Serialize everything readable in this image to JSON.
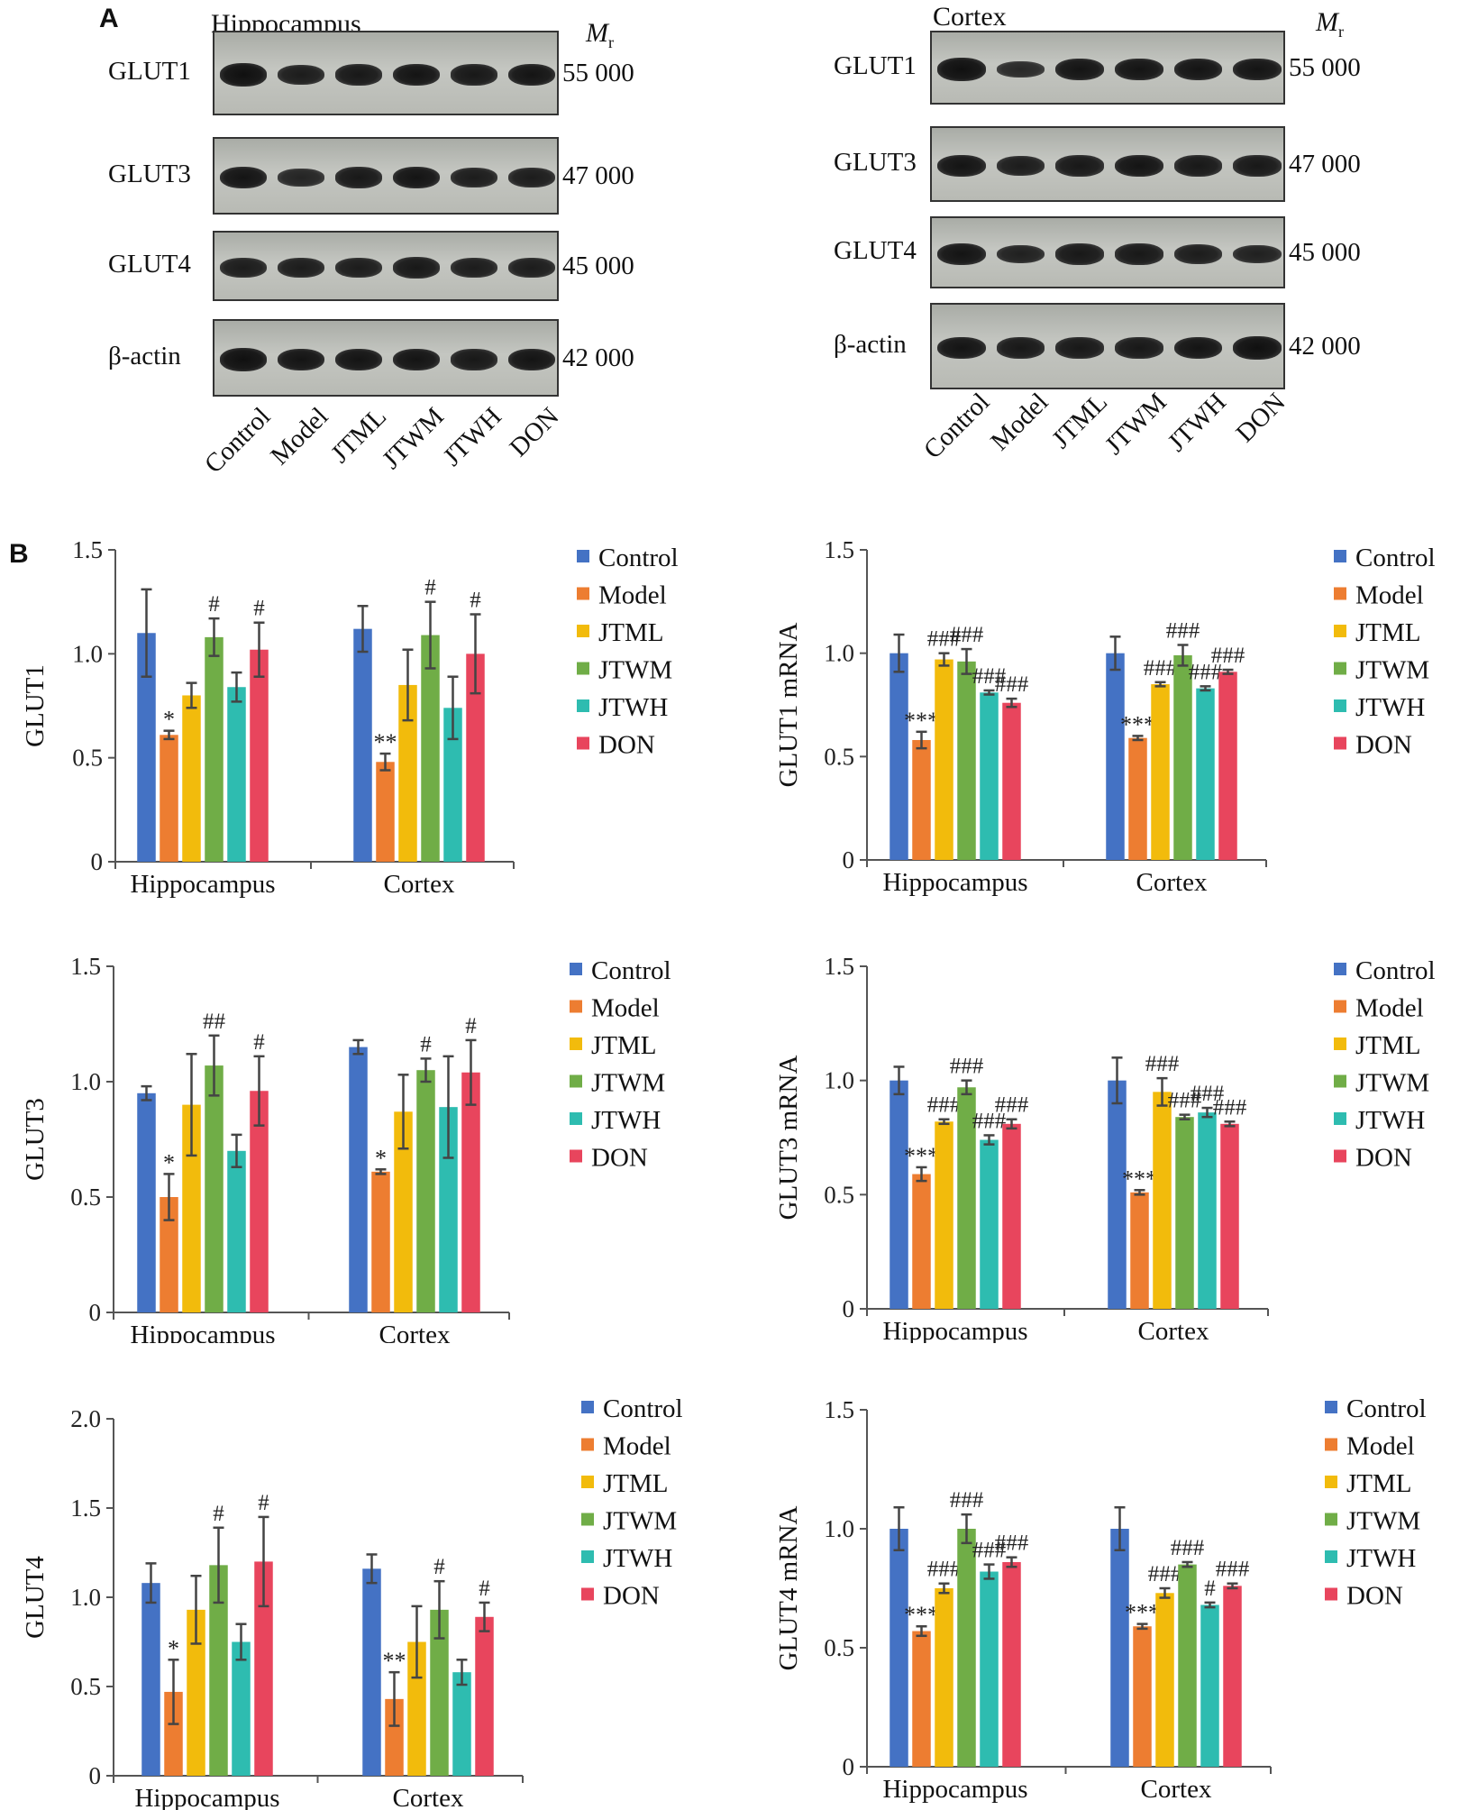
{
  "panelA": {
    "letter": "A",
    "mr_label": "M",
    "mr_sub": "r",
    "lanes": [
      "Control",
      "Model",
      "JTML",
      "JTWM",
      "JTWH",
      "DON"
    ],
    "blots": [
      {
        "title": "Hippocampus",
        "rows": [
          {
            "label": "GLUT1",
            "size": "55 000",
            "bands": [
              1.0,
              0.85,
              0.9,
              0.95,
              0.9,
              0.95
            ]
          },
          {
            "label": "GLUT3",
            "size": "47 000",
            "bands": [
              0.95,
              0.75,
              0.9,
              0.95,
              0.85,
              0.85
            ]
          },
          {
            "label": "GLUT4",
            "size": "45 000",
            "bands": [
              0.85,
              0.85,
              0.85,
              0.9,
              0.85,
              0.85
            ]
          },
          {
            "label": "β-actin",
            "size": "42 000",
            "bands": [
              1.0,
              0.95,
              0.95,
              0.95,
              0.9,
              0.95
            ]
          }
        ]
      },
      {
        "title": "Cortex",
        "rows": [
          {
            "label": "GLUT1",
            "size": "55 000",
            "bands": [
              1.0,
              0.7,
              0.95,
              0.95,
              0.95,
              0.95
            ]
          },
          {
            "label": "GLUT3",
            "size": "47 000",
            "bands": [
              0.95,
              0.85,
              0.9,
              0.95,
              0.9,
              0.9
            ]
          },
          {
            "label": "GLUT4",
            "size": "45 000",
            "bands": [
              0.95,
              0.8,
              0.9,
              0.9,
              0.85,
              0.8
            ]
          },
          {
            "label": "β-actin",
            "size": "42 000",
            "bands": [
              0.95,
              0.9,
              0.9,
              0.9,
              0.95,
              1.0
            ]
          }
        ]
      }
    ]
  },
  "panelB": {
    "letter": "B"
  },
  "colors": {
    "Control": "#4472c4",
    "Model": "#ed7d31",
    "JTML": "#f2bb0c",
    "JTWM": "#70ad47",
    "JTWH": "#2ebcb0",
    "DON": "#e8455d"
  },
  "chart_data": [
    {
      "type": "bar",
      "ylabel": "GLUT1",
      "categories": [
        "Hippocampus",
        "Cortex"
      ],
      "ylim": [
        0,
        1.5
      ],
      "yticks": [
        "0",
        "0.5",
        "1.0",
        "1.5"
      ],
      "legend": "right",
      "series": [
        {
          "name": "Control",
          "values": [
            1.1,
            1.12
          ],
          "errors": [
            0.21,
            0.11
          ],
          "marks": [
            "",
            ""
          ]
        },
        {
          "name": "Model",
          "values": [
            0.61,
            0.48
          ],
          "errors": [
            0.02,
            0.04
          ],
          "marks": [
            "*",
            "**"
          ]
        },
        {
          "name": "JTML",
          "values": [
            0.8,
            0.85
          ],
          "errors": [
            0.06,
            0.17
          ],
          "marks": [
            "",
            ""
          ]
        },
        {
          "name": "JTWM",
          "values": [
            1.08,
            1.09
          ],
          "errors": [
            0.09,
            0.16
          ],
          "marks": [
            "#",
            "#"
          ]
        },
        {
          "name": "JTWH",
          "values": [
            0.84,
            0.74
          ],
          "errors": [
            0.07,
            0.15
          ],
          "marks": [
            "",
            ""
          ]
        },
        {
          "name": "DON",
          "values": [
            1.02,
            1.0
          ],
          "errors": [
            0.13,
            0.19
          ],
          "marks": [
            "#",
            "#"
          ]
        }
      ]
    },
    {
      "type": "bar",
      "ylabel": "GLUT1 mRNA",
      "categories": [
        "Hippocampus",
        "Cortex"
      ],
      "ylim": [
        0,
        1.5
      ],
      "yticks": [
        "0",
        "0.5",
        "1.0",
        "1.5"
      ],
      "legend": "right",
      "series": [
        {
          "name": "Control",
          "values": [
            1.0,
            1.0
          ],
          "errors": [
            0.09,
            0.08
          ],
          "marks": [
            "",
            ""
          ]
        },
        {
          "name": "Model",
          "values": [
            0.58,
            0.59
          ],
          "errors": [
            0.04,
            0.01
          ],
          "marks": [
            "***",
            "***"
          ]
        },
        {
          "name": "JTML",
          "values": [
            0.97,
            0.85
          ],
          "errors": [
            0.03,
            0.01
          ],
          "marks": [
            "###",
            "###"
          ]
        },
        {
          "name": "JTWM",
          "values": [
            0.96,
            0.99
          ],
          "errors": [
            0.06,
            0.05
          ],
          "marks": [
            "###",
            "###"
          ]
        },
        {
          "name": "JTWH",
          "values": [
            0.81,
            0.83
          ],
          "errors": [
            0.01,
            0.01
          ],
          "marks": [
            "###",
            "###"
          ]
        },
        {
          "name": "DON",
          "values": [
            0.76,
            0.91
          ],
          "errors": [
            0.02,
            0.01
          ],
          "marks": [
            "###",
            "###"
          ]
        }
      ]
    },
    {
      "type": "bar",
      "ylabel": "GLUT3",
      "categories": [
        "Hippocampus",
        "Cortex"
      ],
      "ylim": [
        0,
        1.5
      ],
      "yticks": [
        "0",
        "0.5",
        "1.0",
        "1.5"
      ],
      "legend": "right",
      "series": [
        {
          "name": "Control",
          "values": [
            0.95,
            1.15
          ],
          "errors": [
            0.03,
            0.03
          ],
          "marks": [
            "",
            ""
          ]
        },
        {
          "name": "Model",
          "values": [
            0.5,
            0.61
          ],
          "errors": [
            0.1,
            0.01
          ],
          "marks": [
            "*",
            "*"
          ]
        },
        {
          "name": "JTML",
          "values": [
            0.9,
            0.87
          ],
          "errors": [
            0.22,
            0.16
          ],
          "marks": [
            "",
            ""
          ]
        },
        {
          "name": "JTWM",
          "values": [
            1.07,
            1.05
          ],
          "errors": [
            0.13,
            0.05
          ],
          "marks": [
            "##",
            "#"
          ]
        },
        {
          "name": "JTWH",
          "values": [
            0.7,
            0.89
          ],
          "errors": [
            0.07,
            0.22
          ],
          "marks": [
            "",
            ""
          ]
        },
        {
          "name": "DON",
          "values": [
            0.96,
            1.04
          ],
          "errors": [
            0.15,
            0.14
          ],
          "marks": [
            "#",
            "#"
          ]
        }
      ]
    },
    {
      "type": "bar",
      "ylabel": "GLUT3 mRNA",
      "categories": [
        "Hippocampus",
        "Cortex"
      ],
      "ylim": [
        0,
        1.5
      ],
      "yticks": [
        "0",
        "0.5",
        "1.0",
        "1.5"
      ],
      "legend": "right",
      "series": [
        {
          "name": "Control",
          "values": [
            1.0,
            1.0
          ],
          "errors": [
            0.06,
            0.1
          ],
          "marks": [
            "",
            ""
          ]
        },
        {
          "name": "Model",
          "values": [
            0.59,
            0.51
          ],
          "errors": [
            0.03,
            0.01
          ],
          "marks": [
            "***",
            "***"
          ]
        },
        {
          "name": "JTML",
          "values": [
            0.82,
            0.95
          ],
          "errors": [
            0.01,
            0.06
          ],
          "marks": [
            "###",
            "###"
          ]
        },
        {
          "name": "JTWM",
          "values": [
            0.97,
            0.84
          ],
          "errors": [
            0.03,
            0.01
          ],
          "marks": [
            "###",
            "###"
          ]
        },
        {
          "name": "JTWH",
          "values": [
            0.74,
            0.86
          ],
          "errors": [
            0.02,
            0.02
          ],
          "marks": [
            "###",
            "###"
          ]
        },
        {
          "name": "DON",
          "values": [
            0.81,
            0.81
          ],
          "errors": [
            0.02,
            0.01
          ],
          "marks": [
            "###",
            "###"
          ]
        }
      ]
    },
    {
      "type": "bar",
      "ylabel": "GLUT4",
      "categories": [
        "Hippocampus",
        "Cortex"
      ],
      "ylim": [
        0,
        2.0
      ],
      "yticks": [
        "0",
        "0.5",
        "1.0",
        "1.5",
        "2.0"
      ],
      "legend": "right",
      "series": [
        {
          "name": "Control",
          "values": [
            1.08,
            1.16
          ],
          "errors": [
            0.11,
            0.08
          ],
          "marks": [
            "",
            ""
          ]
        },
        {
          "name": "Model",
          "values": [
            0.47,
            0.43
          ],
          "errors": [
            0.18,
            0.15
          ],
          "marks": [
            "*",
            "**"
          ]
        },
        {
          "name": "JTML",
          "values": [
            0.93,
            0.75
          ],
          "errors": [
            0.19,
            0.2
          ],
          "marks": [
            "",
            ""
          ]
        },
        {
          "name": "JTWM",
          "values": [
            1.18,
            0.93
          ],
          "errors": [
            0.21,
            0.16
          ],
          "marks": [
            "#",
            "#"
          ]
        },
        {
          "name": "JTWH",
          "values": [
            0.75,
            0.58
          ],
          "errors": [
            0.1,
            0.07
          ],
          "marks": [
            "",
            ""
          ]
        },
        {
          "name": "DON",
          "values": [
            1.2,
            0.89
          ],
          "errors": [
            0.25,
            0.08
          ],
          "marks": [
            "#",
            "#"
          ]
        }
      ]
    },
    {
      "type": "bar",
      "ylabel": "GLUT4 mRNA",
      "categories": [
        "Hippocampus",
        "Cortex"
      ],
      "ylim": [
        0,
        1.5
      ],
      "yticks": [
        "0",
        "0.5",
        "1.0",
        "1.5"
      ],
      "legend": "right",
      "series": [
        {
          "name": "Control",
          "values": [
            1.0,
            1.0
          ],
          "errors": [
            0.09,
            0.09
          ],
          "marks": [
            "",
            ""
          ]
        },
        {
          "name": "Model",
          "values": [
            0.57,
            0.59
          ],
          "errors": [
            0.02,
            0.01
          ],
          "marks": [
            "***",
            "***"
          ]
        },
        {
          "name": "JTML",
          "values": [
            0.75,
            0.73
          ],
          "errors": [
            0.02,
            0.02
          ],
          "marks": [
            "###",
            "###"
          ]
        },
        {
          "name": "JTWM",
          "values": [
            1.0,
            0.85
          ],
          "errors": [
            0.06,
            0.01
          ],
          "marks": [
            "###",
            "###"
          ]
        },
        {
          "name": "JTWH",
          "values": [
            0.82,
            0.68
          ],
          "errors": [
            0.03,
            0.01
          ],
          "marks": [
            "###",
            "#"
          ]
        },
        {
          "name": "DON",
          "values": [
            0.86,
            0.76
          ],
          "errors": [
            0.02,
            0.01
          ],
          "marks": [
            "###",
            "###"
          ]
        }
      ]
    }
  ]
}
